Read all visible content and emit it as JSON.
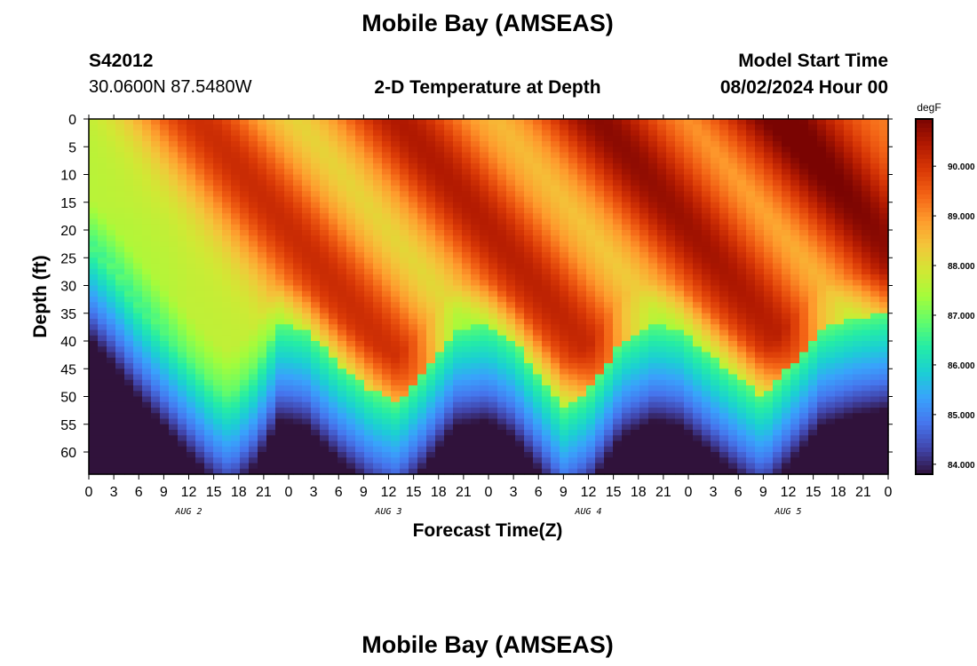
{
  "page": {
    "title": "Mobile Bay (AMSEAS)",
    "station_id": "S42012",
    "station_coords": "30.0600N  87.5480W",
    "subtitle": "2-D Temperature at Depth",
    "model_start_label": "Model Start Time",
    "model_start_value": "08/02/2024 Hour 00",
    "footer_title": "Mobile Bay (AMSEAS)"
  },
  "chart_data": {
    "type": "heatmap",
    "title": "2-D Temperature at Depth",
    "xlabel": "Forecast Time(Z)",
    "ylabel": "Depth (ft)",
    "x_range_hours": [
      0,
      96
    ],
    "y_range_ft": [
      0,
      64
    ],
    "y_inverted": true,
    "x_tick_labels": [
      "0",
      "3",
      "6",
      "9",
      "12",
      "15",
      "18",
      "21",
      "0",
      "3",
      "6",
      "9",
      "12",
      "15",
      "18",
      "21",
      "0",
      "3",
      "6",
      "9",
      "12",
      "15",
      "18",
      "21",
      "0",
      "3",
      "6",
      "9",
      "12",
      "15",
      "18",
      "21",
      "0"
    ],
    "day_labels": [
      "AUG 2",
      "AUG 3",
      "AUG 4",
      "AUG 5"
    ],
    "y_ticks": [
      0,
      5,
      10,
      15,
      20,
      25,
      30,
      35,
      40,
      45,
      50,
      55,
      60
    ],
    "colorbar": {
      "unit": "degF",
      "range": [
        83.8,
        90.95
      ],
      "ticks": [
        84.0,
        85.0,
        86.0,
        87.0,
        88.0,
        89.0,
        90.0
      ],
      "tick_labels": [
        "84.000",
        "85.000",
        "86.000",
        "87.000",
        "88.000",
        "89.000",
        "90.000"
      ],
      "colormap": [
        "#30123b",
        "#4145ab",
        "#4675ed",
        "#39a2fc",
        "#1bcfd4",
        "#24eca6",
        "#61fc6c",
        "#a4fc3b",
        "#d1e834",
        "#f3c63a",
        "#fe9b2d",
        "#f36315",
        "#d93806",
        "#b11901",
        "#7a0402"
      ]
    },
    "thermocline_depth_ft": [
      {
        "hour": 0,
        "depth": 22
      },
      {
        "hour": 3,
        "depth": 27
      },
      {
        "hour": 6,
        "depth": 33
      },
      {
        "hour": 9,
        "depth": 38
      },
      {
        "hour": 12,
        "depth": 43
      },
      {
        "hour": 15,
        "depth": 48
      },
      {
        "hour": 17,
        "depth": 50
      },
      {
        "hour": 20,
        "depth": 45
      },
      {
        "hour": 23,
        "depth": 37
      },
      {
        "hour": 26,
        "depth": 38
      },
      {
        "hour": 30,
        "depth": 44
      },
      {
        "hour": 34,
        "depth": 49
      },
      {
        "hour": 37,
        "depth": 51
      },
      {
        "hour": 40,
        "depth": 46
      },
      {
        "hour": 44,
        "depth": 38
      },
      {
        "hour": 48,
        "depth": 37
      },
      {
        "hour": 51,
        "depth": 40
      },
      {
        "hour": 54,
        "depth": 46
      },
      {
        "hour": 57,
        "depth": 52
      },
      {
        "hour": 60,
        "depth": 49
      },
      {
        "hour": 64,
        "depth": 40
      },
      {
        "hour": 68,
        "depth": 37
      },
      {
        "hour": 71,
        "depth": 38
      },
      {
        "hour": 75,
        "depth": 43
      },
      {
        "hour": 79,
        "depth": 48
      },
      {
        "hour": 81,
        "depth": 50
      },
      {
        "hour": 84,
        "depth": 45
      },
      {
        "hour": 88,
        "depth": 38
      },
      {
        "hour": 92,
        "depth": 36
      },
      {
        "hour": 96,
        "depth": 35
      }
    ],
    "surface_warm_peaks_hour": [
      22,
      46,
      70,
      92
    ]
  }
}
